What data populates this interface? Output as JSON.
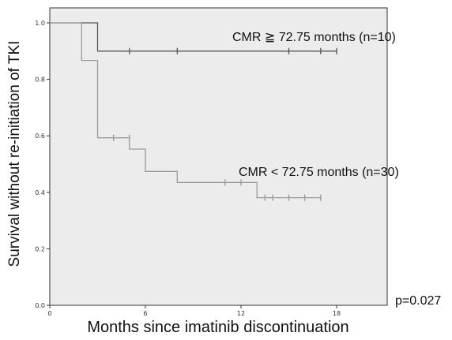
{
  "chart_data": {
    "type": "line",
    "subtype": "kaplan-meier step",
    "xlabel": "Months since imatinib discontinuation",
    "ylabel": "Survival without re-initiation of TKI",
    "xlim": [
      0,
      21
    ],
    "ylim": [
      0,
      1.05
    ],
    "x_ticks": [
      "0",
      "6",
      "12",
      "18"
    ],
    "y_ticks": [
      "0.0",
      "0.2",
      "0.4",
      "0.6",
      "0.8",
      "1.0"
    ],
    "grid": false,
    "plot_background": "#ececec",
    "series": [
      {
        "name": "CMR ≧ 72.75 months (n=10)",
        "color": "#5a5a5a",
        "steps": [
          [
            0,
            1.0
          ],
          [
            3,
            1.0
          ],
          [
            3,
            0.9
          ],
          [
            18,
            0.9
          ]
        ],
        "censored_x": [
          5,
          8,
          15,
          17,
          18
        ],
        "censored_y": 0.9
      },
      {
        "name": "CMR < 72.75 months (n=30)",
        "color": "#9a9a9a",
        "steps": [
          [
            0,
            1.0
          ],
          [
            2,
            1.0
          ],
          [
            2,
            0.867
          ],
          [
            3,
            0.867
          ],
          [
            3,
            0.593
          ],
          [
            5,
            0.593
          ],
          [
            5,
            0.553
          ],
          [
            6,
            0.553
          ],
          [
            6,
            0.474
          ],
          [
            8,
            0.474
          ],
          [
            8,
            0.435
          ],
          [
            13,
            0.435
          ],
          [
            13,
            0.381
          ],
          [
            17,
            0.381
          ]
        ],
        "censored_points": [
          [
            4,
            0.593
          ],
          [
            5,
            0.593
          ],
          [
            11,
            0.435
          ],
          [
            12,
            0.435
          ],
          [
            13.5,
            0.381
          ],
          [
            14,
            0.381
          ],
          [
            15,
            0.381
          ],
          [
            16,
            0.381
          ],
          [
            17,
            0.381
          ]
        ]
      }
    ],
    "p_value": "p=0.027"
  }
}
